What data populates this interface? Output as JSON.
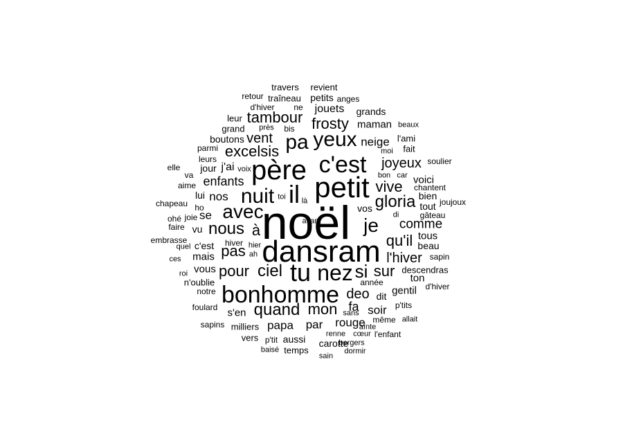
{
  "cloud": {
    "text_color": "#000000",
    "background": "#ffffff",
    "words": [
      {
        "text": "noël",
        "weight": 68
      },
      {
        "text": "dansram",
        "weight": 44
      },
      {
        "text": "petit",
        "weight": 42
      },
      {
        "text": "père",
        "weight": 40
      },
      {
        "text": "bonhomme",
        "weight": 34
      },
      {
        "text": "c'est",
        "weight": 34
      },
      {
        "text": "tu",
        "weight": 36
      },
      {
        "text": "il",
        "weight": 36
      },
      {
        "text": "nez",
        "weight": 32
      },
      {
        "text": "yeux",
        "weight": 30
      },
      {
        "text": "nuit",
        "weight": 30
      },
      {
        "text": "pa",
        "weight": 30
      },
      {
        "text": "avec",
        "weight": 28
      },
      {
        "text": "je",
        "weight": 28
      },
      {
        "text": "si",
        "weight": 26
      },
      {
        "text": "ciel",
        "weight": 24
      },
      {
        "text": "nous",
        "weight": 24
      },
      {
        "text": "gloria",
        "weight": 24
      },
      {
        "text": "quand",
        "weight": 24
      },
      {
        "text": "pas",
        "weight": 22
      },
      {
        "text": "mon",
        "weight": 22
      },
      {
        "text": "frosty",
        "weight": 22
      },
      {
        "text": "pour",
        "weight": 22
      },
      {
        "text": "tambour",
        "weight": 22
      },
      {
        "text": "excelsis",
        "weight": 22
      },
      {
        "text": "vive",
        "weight": 22
      },
      {
        "text": "à",
        "weight": 22
      },
      {
        "text": "sur",
        "weight": 22
      },
      {
        "text": "qu'il",
        "weight": 22
      },
      {
        "text": "vent",
        "weight": 20
      },
      {
        "text": "deo",
        "weight": 20
      },
      {
        "text": "joyeux",
        "weight": 20
      },
      {
        "text": "l'hiver",
        "weight": 20
      },
      {
        "text": "comme",
        "weight": 19
      },
      {
        "text": "enfants",
        "weight": 18
      },
      {
        "text": "fa",
        "weight": 18
      },
      {
        "text": "rouge",
        "weight": 17
      },
      {
        "text": "papa",
        "weight": 17
      },
      {
        "text": "par",
        "weight": 17
      },
      {
        "text": "soir",
        "weight": 17
      },
      {
        "text": "neige",
        "weight": 17
      },
      {
        "text": "nos",
        "weight": 17
      },
      {
        "text": "se",
        "weight": 17
      },
      {
        "text": "jouets",
        "weight": 16
      },
      {
        "text": "maman",
        "weight": 15
      },
      {
        "text": "j'ai",
        "weight": 16
      },
      {
        "text": "mais",
        "weight": 15
      },
      {
        "text": "vous",
        "weight": 15
      },
      {
        "text": "gentil",
        "weight": 15
      },
      {
        "text": "ton",
        "weight": 15
      },
      {
        "text": "tous",
        "weight": 15
      },
      {
        "text": "voici",
        "weight": 15
      },
      {
        "text": "s'en",
        "weight": 15
      },
      {
        "text": "carotte",
        "weight": 14
      },
      {
        "text": "grands",
        "weight": 14
      },
      {
        "text": "aussi",
        "weight": 14
      },
      {
        "text": "c'est",
        "weight": 14
      },
      {
        "text": "dit",
        "weight": 14
      },
      {
        "text": "vos",
        "weight": 14
      },
      {
        "text": "tout",
        "weight": 14
      },
      {
        "text": "bien",
        "weight": 14
      },
      {
        "text": "beau",
        "weight": 14
      },
      {
        "text": "vu",
        "weight": 14
      },
      {
        "text": "boutons",
        "weight": 14
      },
      {
        "text": "jour",
        "weight": 14
      },
      {
        "text": "lui",
        "weight": 14
      },
      {
        "text": "petits",
        "weight": 14
      },
      {
        "text": "leur",
        "weight": 13
      },
      {
        "text": "grand",
        "weight": 13
      },
      {
        "text": "temps",
        "weight": 13
      },
      {
        "text": "descendras",
        "weight": 13
      },
      {
        "text": "traîneau",
        "weight": 13
      },
      {
        "text": "vers",
        "weight": 13
      },
      {
        "text": "milliers",
        "weight": 13
      },
      {
        "text": "fait",
        "weight": 13
      },
      {
        "text": "n'oublie",
        "weight": 13
      },
      {
        "text": "l'ami",
        "weight": 13
      },
      {
        "text": "travers",
        "weight": 13
      },
      {
        "text": "revient",
        "weight": 13
      },
      {
        "text": "même",
        "weight": 12
      },
      {
        "text": "année",
        "weight": 12
      },
      {
        "text": "va",
        "weight": 12
      },
      {
        "text": "ho",
        "weight": 12
      },
      {
        "text": "leurs",
        "weight": 12
      },
      {
        "text": "parmi",
        "weight": 12
      },
      {
        "text": "bis",
        "weight": 12
      },
      {
        "text": "p'tits",
        "weight": 12
      },
      {
        "text": "notre",
        "weight": 12
      },
      {
        "text": "d'hiver",
        "weight": 12
      },
      {
        "text": "anges",
        "weight": 12
      },
      {
        "text": "hiver",
        "weight": 12
      },
      {
        "text": "ne",
        "weight": 12
      },
      {
        "text": "soulier",
        "weight": 12
      },
      {
        "text": "chapeau",
        "weight": 12
      },
      {
        "text": "foulard",
        "weight": 12
      },
      {
        "text": "sapins",
        "weight": 12
      },
      {
        "text": "p'tit",
        "weight": 12
      },
      {
        "text": "ohé",
        "weight": 12
      },
      {
        "text": "joie",
        "weight": 12
      },
      {
        "text": "faire",
        "weight": 12
      },
      {
        "text": "retour",
        "weight": 12
      },
      {
        "text": "embrasse",
        "weight": 12
      },
      {
        "text": "aime",
        "weight": 12
      },
      {
        "text": "elle",
        "weight": 12
      },
      {
        "text": "d'hiver",
        "weight": 12
      },
      {
        "text": "joujoux",
        "weight": 12
      },
      {
        "text": "sapin",
        "weight": 12
      },
      {
        "text": "gâteau",
        "weight": 12
      },
      {
        "text": "chantent",
        "weight": 12
      },
      {
        "text": "l'enfant",
        "weight": 12
      },
      {
        "text": "bergers",
        "weight": 11
      },
      {
        "text": "dormir",
        "weight": 11
      },
      {
        "text": "sain",
        "weight": 11
      },
      {
        "text": "baisé",
        "weight": 11
      },
      {
        "text": "renne",
        "weight": 11
      },
      {
        "text": "cœur",
        "weight": 11
      },
      {
        "text": "aînte",
        "weight": 11
      },
      {
        "text": "allait",
        "weight": 11
      },
      {
        "text": "sans",
        "weight": 11
      },
      {
        "text": "ces",
        "weight": 11
      },
      {
        "text": "quel",
        "weight": 11
      },
      {
        "text": "hier",
        "weight": 11
      },
      {
        "text": "ah",
        "weight": 11
      },
      {
        "text": "roi",
        "weight": 11
      },
      {
        "text": "voix",
        "weight": 11
      },
      {
        "text": "toi",
        "weight": 11
      },
      {
        "text": "là",
        "weight": 11
      },
      {
        "text": "di",
        "weight": 11
      },
      {
        "text": "bon",
        "weight": 11
      },
      {
        "text": "car",
        "weight": 11
      },
      {
        "text": "moi",
        "weight": 11
      },
      {
        "text": "beaux",
        "weight": 11
      },
      {
        "text": "près",
        "weight": 11
      },
      {
        "text": "avant",
        "weight": 11
      }
    ]
  }
}
